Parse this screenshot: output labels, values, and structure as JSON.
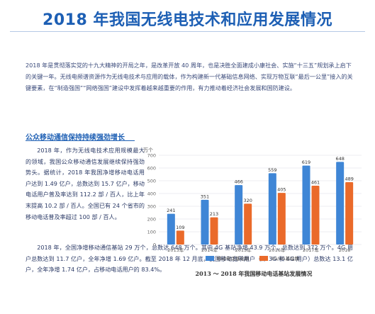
{
  "page": {
    "title": "2018 年我国无线电技术和应用发展情况",
    "intro": "2018 年是贯彻落实党的十九大精神的开局之年，是改革开放 40 周年，也是决胜全面建成小康社会、实施“十三五”规划承上启下的关键一年。无线电频谱资源作为无线电技术与应用的载体，作为构建新一代基础信息网络、实现万物互联“最后一公里”接入的关键要素，在“制造强国”“网络强国”建设中发挥着越来越重要的作用，有力推动着经济社会发展和国防建设。",
    "section_heading": "公众移动通信保持持续强劲增长",
    "paragraphs": [
      "2018 年，作为无线电技术应用规模最大的领域，我国公众移动通信发展继续保持强劲势头。据统计，2018 年我国净增移动电话用户达到 1.49 亿户，总数达到 15.7 亿户，移动电话用户普及率达到 112.2 部 / 百人，比上年末提高 10.2 部 / 百人。全国已有 24 个省市的移动电话普及率超过 100 部 / 百人。",
      "2018 年，全国净增移动通信基站 29 万个，总数达 648 万个。其中 4G 基站净增 43.9 万个，总数达到 372 万个。4G 用户总数达到 11.7 亿户，全年净增 1.69 亿户。截至 2018 年 12 月底，我国移动宽带用户（即 3G 和 4G 用户）总数达 13.1 亿户，全年净增 1.74 亿户，占移动电话用户的 83.4%。"
    ]
  },
  "chart_data": {
    "type": "bar",
    "ylabel": "万个",
    "ylim": [
      0,
      700
    ],
    "yticks": [
      0,
      100,
      200,
      300,
      400,
      500,
      600,
      700
    ],
    "categories": [
      "2013年",
      "2014年",
      "2015年",
      "2016年",
      "2017年",
      "2018"
    ],
    "series": [
      {
        "name": "移动电话基站数",
        "values": [
          241,
          351,
          466,
          559,
          619,
          648
        ],
        "color": "#3f86d6"
      },
      {
        "name": "3G/4G基站数",
        "values": [
          109,
          213,
          320,
          405,
          461,
          489
        ],
        "color": "#ea6a2a"
      }
    ],
    "legend_position": "bottom",
    "grid": true,
    "caption": "2013 ～ 2018 年我国移动电话基站发展情况"
  }
}
